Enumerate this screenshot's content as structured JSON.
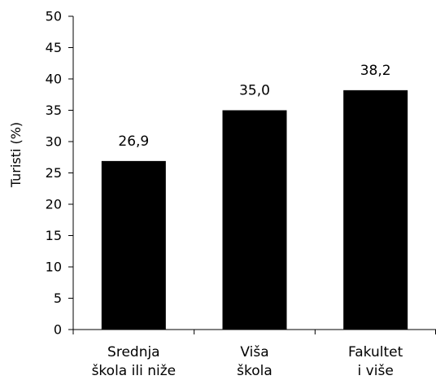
{
  "chart_data": {
    "type": "bar",
    "title": "",
    "xlabel": "",
    "ylabel": "Turisti (%)",
    "ylim": [
      0,
      50
    ],
    "yticks": [
      "0",
      "5",
      "10",
      "15",
      "20",
      "25",
      "30",
      "35",
      "40",
      "45",
      "50"
    ],
    "categories": [
      [
        "Srednja",
        "škola ili niže"
      ],
      [
        "Viša",
        "škola"
      ],
      [
        "Fakultet",
        "i više"
      ]
    ],
    "values": [
      26.9,
      35.0,
      38.2
    ],
    "data_labels": [
      "26,9",
      "35,0",
      "38,2"
    ],
    "bar_color": "#000000",
    "grid": false,
    "legend": "none"
  }
}
